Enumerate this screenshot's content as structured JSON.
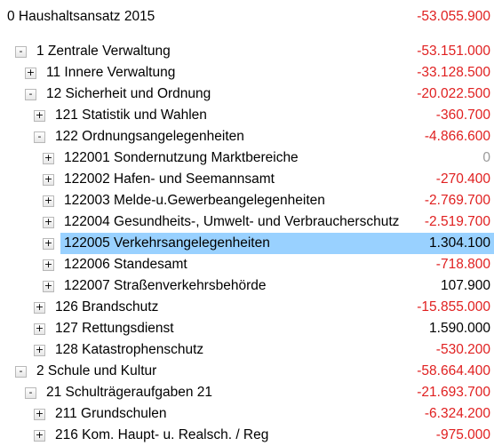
{
  "tree": {
    "root": {
      "label": "0 Haushaltsansatz 2015",
      "value": "-53.055.900"
    },
    "rows": [
      {
        "toggle": "-",
        "label": "1 Zentrale Verwaltung",
        "value": "-53.151.000"
      },
      {
        "toggle": "+",
        "label": "11 Innere Verwaltung",
        "value": "-33.128.500"
      },
      {
        "toggle": "-",
        "label": "12 Sicherheit und Ordnung",
        "value": "-20.022.500"
      },
      {
        "toggle": "+",
        "label": "121 Statistik und Wahlen",
        "value": "-360.700"
      },
      {
        "toggle": "-",
        "label": "122 Ordnungsangelegenheiten",
        "value": "-4.866.600"
      },
      {
        "toggle": "+",
        "label": "122001 Sondernutzung Marktbereiche",
        "value": "0"
      },
      {
        "toggle": "+",
        "label": "122002 Hafen- und Seemannsamt",
        "value": "-270.400"
      },
      {
        "toggle": "+",
        "label": "122003 Melde-u.Gewerbeangelegenheiten",
        "value": "-2.769.700"
      },
      {
        "toggle": "+",
        "label": "122004 Gesundheits-, Umwelt- und Verbraucherschutz",
        "value": "-2.519.700"
      },
      {
        "toggle": "+",
        "label": "122005 Verkehrsangelegenheiten",
        "value": "1.304.100"
      },
      {
        "toggle": "+",
        "label": "122006 Standesamt",
        "value": "-718.800"
      },
      {
        "toggle": "+",
        "label": "122007 Straßenverkehrsbehörde",
        "value": "107.900"
      },
      {
        "toggle": "+",
        "label": "126 Brandschutz",
        "value": "-15.855.000"
      },
      {
        "toggle": "+",
        "label": "127 Rettungsdienst",
        "value": "1.590.000"
      },
      {
        "toggle": "+",
        "label": "128 Katastrophenschutz",
        "value": "-530.200"
      },
      {
        "toggle": "-",
        "label": "2 Schule und Kultur",
        "value": "-58.664.400"
      },
      {
        "toggle": "-",
        "label": "21 Schulträgeraufgaben 21",
        "value": "-21.693.700"
      },
      {
        "toggle": "+",
        "label": "211 Grundschulen",
        "value": "-6.324.200"
      },
      {
        "toggle": "+",
        "label": "216 Kom. Haupt- u. Realsch. / Reg",
        "value": "-975.000"
      }
    ]
  },
  "colors": {
    "negative": "#e02020",
    "zero": "#9a9a9a",
    "selected": "#99d1ff"
  }
}
